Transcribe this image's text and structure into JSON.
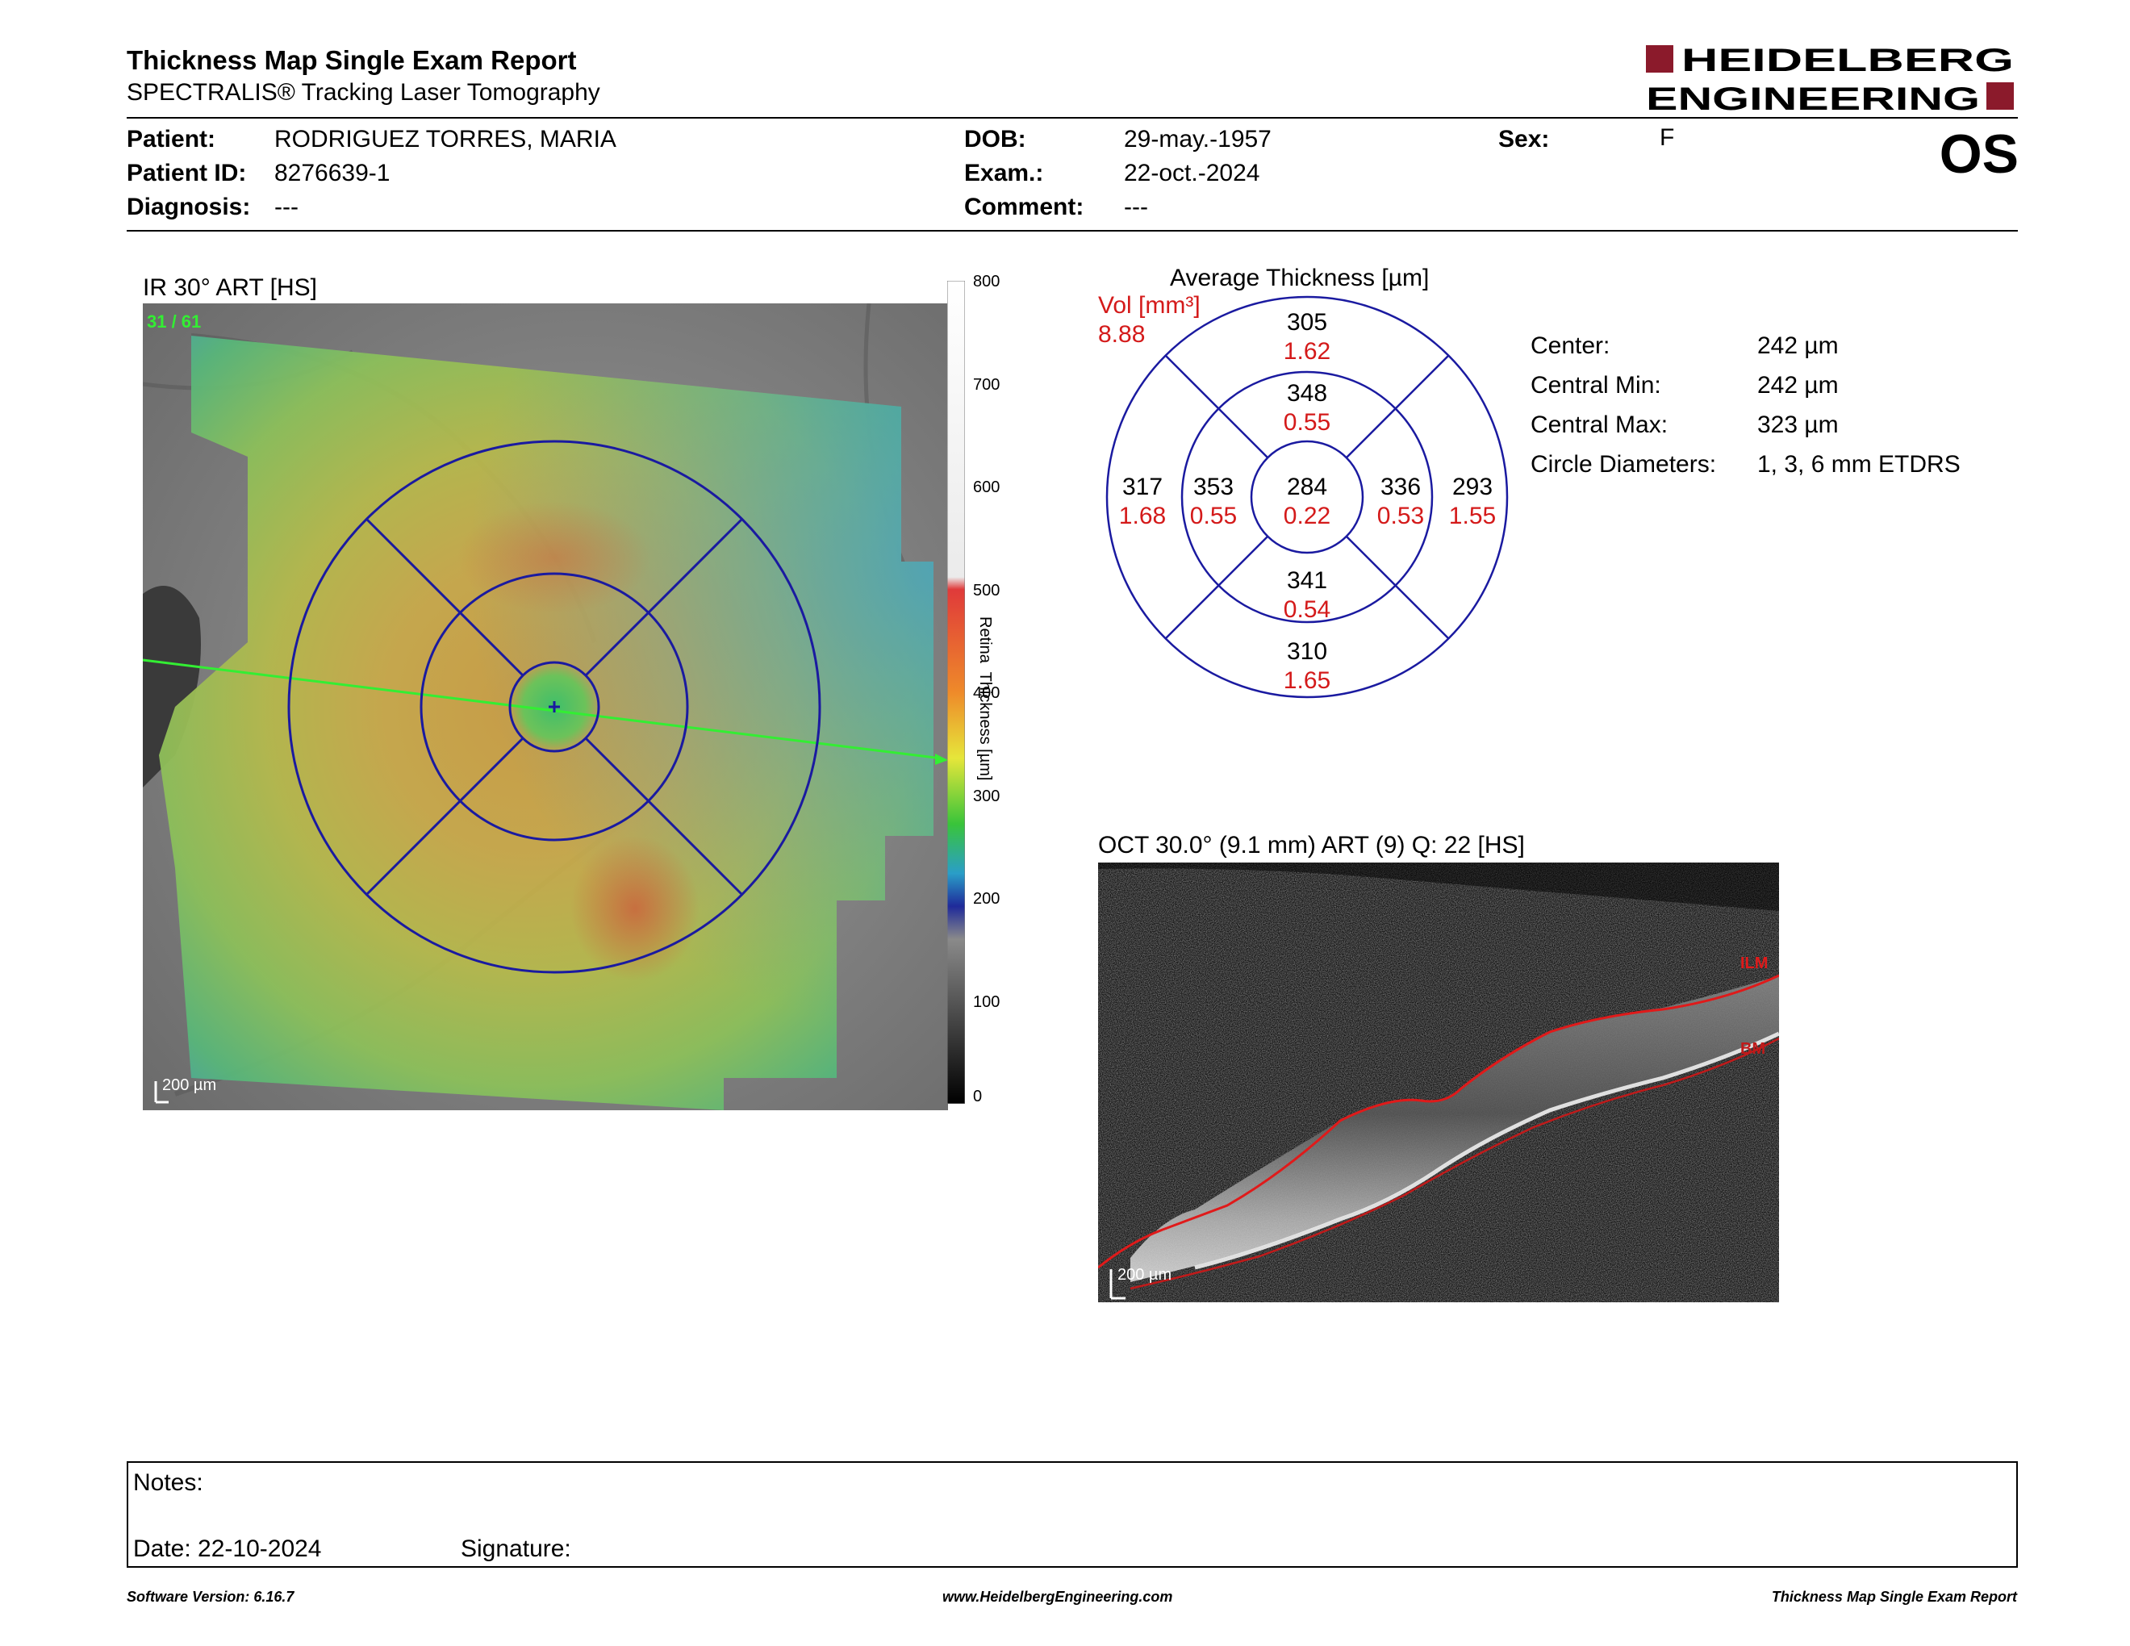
{
  "header": {
    "title": "Thickness Map Single Exam Report",
    "subtitle": "SPECTRALIS® Tracking Laser Tomography",
    "logo_line1": "HEIDELBERG",
    "logo_line2": "ENGINEERING",
    "eye": "OS"
  },
  "patient": {
    "patient_label": "Patient:",
    "patient_value": "RODRIGUEZ TORRES, MARIA",
    "id_label": "Patient ID:",
    "id_value": "8276639-1",
    "diagnosis_label": "Diagnosis:",
    "diagnosis_value": "---",
    "dob_label": "DOB:",
    "dob_value": "29-may.-1957",
    "exam_label": "Exam.:",
    "exam_value": "22-oct.-2024",
    "comment_label": "Comment:",
    "comment_value": "---",
    "sex_label": "Sex:",
    "sex_value": "F"
  },
  "fundus": {
    "title": "IR 30° ART [HS]",
    "frame": "31 / 61",
    "scale_bar": "200 µm",
    "colorbar_label": "Retina  Thickness [µm]",
    "colorbar_ticks": [
      "800",
      "700",
      "600",
      "500",
      "400",
      "300",
      "200",
      "100",
      "0"
    ]
  },
  "etdrs": {
    "title": "Average Thickness [µm]",
    "vol_label": "Vol [mm³]",
    "vol_value": "8.88",
    "sectors": {
      "outer_top": {
        "thickness": "305",
        "volume": "1.62"
      },
      "inner_top": {
        "thickness": "348",
        "volume": "0.55"
      },
      "outer_left": {
        "thickness": "317",
        "volume": "1.68"
      },
      "inner_left": {
        "thickness": "353",
        "volume": "0.55"
      },
      "center": {
        "thickness": "284",
        "volume": "0.22"
      },
      "inner_right": {
        "thickness": "336",
        "volume": "0.53"
      },
      "outer_right": {
        "thickness": "293",
        "volume": "1.55"
      },
      "inner_bottom": {
        "thickness": "341",
        "volume": "0.54"
      },
      "outer_bottom": {
        "thickness": "310",
        "volume": "1.65"
      }
    }
  },
  "stats": {
    "center_label": "Center:",
    "center_value": "242 µm",
    "min_label": "Central Min:",
    "min_value": "242 µm",
    "max_label": "Central Max:",
    "max_value": "323 µm",
    "diam_label": "Circle Diameters:",
    "diam_value": "1, 3, 6 mm ETDRS"
  },
  "oct": {
    "title": "OCT 30.0° (9.1 mm) ART (9) Q: 22 [HS]",
    "ilm": "ILM",
    "bm": "BM",
    "scale_bar": "200 µm"
  },
  "notes": {
    "notes_label": "Notes:",
    "date_label": "Date: 22-10-2024",
    "signature_label": "Signature:"
  },
  "footer": {
    "software": "Software Version: 6.16.7",
    "website": "www.HeidelbergEngineering.com",
    "report": "Thickness Map Single Exam Report"
  },
  "colors": {
    "brand": "#8b1a2b",
    "grid": "#1a1aa0",
    "volume_text": "#d41a1a",
    "scan_line": "#33ee33"
  }
}
